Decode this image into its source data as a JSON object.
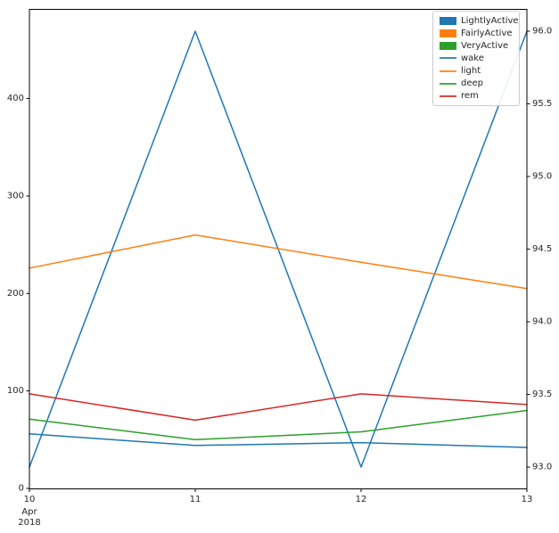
{
  "figure": {
    "background": "#ffffff",
    "title": ""
  },
  "chart_data": {
    "type": "line",
    "title": "",
    "xlabel": "",
    "ylabel": "",
    "grid": false,
    "x_categories": [
      "2018-04-10",
      "2018-04-11",
      "2018-04-12",
      "2018-04-13"
    ],
    "x_axis": {
      "tick_labels": [
        "10",
        "11",
        "12",
        "13"
      ],
      "offset_lines": [
        "Apr",
        "2018"
      ]
    },
    "left_axis": {
      "tick_labels": [
        "0",
        "100",
        "200",
        "300",
        "400"
      ],
      "tick_values": [
        0,
        100,
        200,
        300,
        400
      ],
      "range": [
        -0.5,
        491.5
      ]
    },
    "right_axis": {
      "tick_labels": [
        "93.0",
        "93.5",
        "94.0",
        "94.5",
        "95.0",
        "95.5",
        "96.0"
      ],
      "tick_values": [
        93.0,
        93.5,
        94.0,
        94.5,
        95.0,
        95.5,
        96.0
      ],
      "range": [
        92.85,
        96.15
      ]
    },
    "series": [
      {
        "name": "LightlyActive",
        "axis": "right",
        "color": "#1f77b4",
        "values": [
          93,
          96,
          93,
          96
        ]
      },
      {
        "name": "wake",
        "axis": "left",
        "color": "#1f77b4",
        "values": [
          56,
          44,
          47,
          42
        ]
      },
      {
        "name": "light",
        "axis": "left",
        "color": "#ff7f0e",
        "values": [
          226,
          260,
          232,
          205
        ]
      },
      {
        "name": "deep",
        "axis": "left",
        "color": "#2ca02c",
        "values": [
          71,
          50,
          58,
          80
        ]
      },
      {
        "name": "rem",
        "axis": "left",
        "color": "#d62728",
        "values": [
          97,
          70,
          97,
          86
        ]
      }
    ],
    "legend": {
      "position": "upper-right",
      "entries": [
        {
          "label": "LightlyActive",
          "handle": "patch",
          "color": "#1f77b4"
        },
        {
          "label": "FairlyActive",
          "handle": "patch",
          "color": "#ff7f0e"
        },
        {
          "label": "VeryActive",
          "handle": "patch",
          "color": "#2ca02c"
        },
        {
          "label": "wake",
          "handle": "line",
          "color": "#1f77b4"
        },
        {
          "label": "light",
          "handle": "line",
          "color": "#ff7f0e"
        },
        {
          "label": "deep",
          "handle": "line",
          "color": "#2ca02c"
        },
        {
          "label": "rem",
          "handle": "line",
          "color": "#d62728"
        }
      ]
    }
  }
}
